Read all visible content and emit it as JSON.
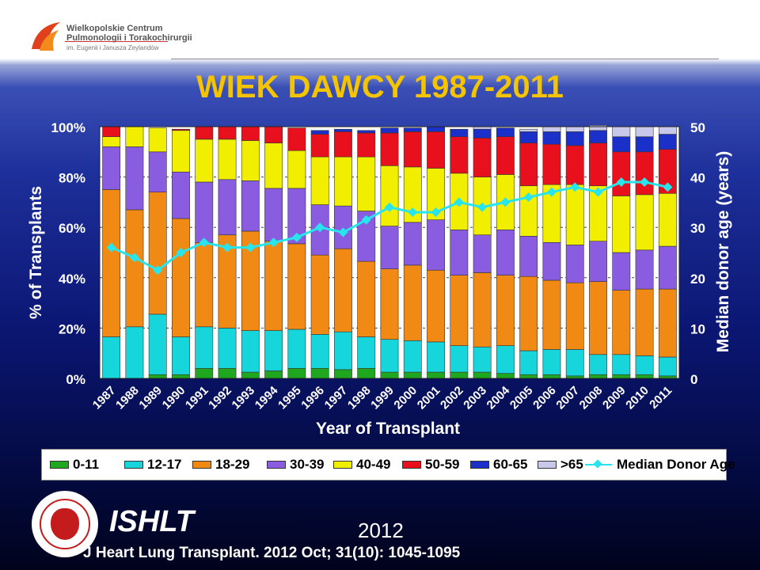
{
  "header": {
    "org_line1": "Wielkopolskie Centrum",
    "org_line2": "Pulmonologii i Torakochirurgii",
    "org_line3": "im. Eugenii i Janusza Zeylandów"
  },
  "chart_data": {
    "type": "bar",
    "stacked": true,
    "title": "WIEK DAWCY 1987-2011",
    "xlabel": "Year of Transplant",
    "ylabel": "% of Transplants",
    "y2label": "Median donor age (years)",
    "ylim": [
      0,
      100
    ],
    "y2lim": [
      0,
      50
    ],
    "yticks": [
      "0%",
      "20%",
      "40%",
      "60%",
      "80%",
      "100%"
    ],
    "y2ticks": [
      "0",
      "10",
      "20",
      "30",
      "40",
      "50"
    ],
    "grid": true,
    "legend_position": "bottom",
    "categories": [
      "1987",
      "1988",
      "1989",
      "1990",
      "1991",
      "1992",
      "1993",
      "1994",
      "1995",
      "1996",
      "1997",
      "1998",
      "1999",
      "2000",
      "2001",
      "2002",
      "2003",
      "2004",
      "2005",
      "2006",
      "2007",
      "2008",
      "2009",
      "2010",
      "2011"
    ],
    "series": [
      {
        "name": "0-11",
        "color": "#1fa81f",
        "values": [
          0,
          0,
          1.5,
          1.5,
          4,
          4,
          2.5,
          3,
          4,
          4,
          3.5,
          4,
          2.5,
          2.5,
          2.5,
          2.5,
          2.5,
          2,
          1.5,
          1.5,
          1,
          1.5,
          1.5,
          1.5,
          1
        ]
      },
      {
        "name": "12-17",
        "color": "#16d6dc",
        "values": [
          16.5,
          20.5,
          24,
          15,
          16.5,
          16,
          16.5,
          16,
          15.5,
          13.5,
          15,
          12.5,
          13,
          12.5,
          12,
          10.5,
          10,
          11,
          9.5,
          10,
          10.5,
          8,
          8,
          7.5,
          7.5
        ]
      },
      {
        "name": "18-29",
        "color": "#f08a14",
        "values": [
          58.5,
          46.5,
          48.5,
          47,
          33.5,
          37,
          39.5,
          35.5,
          34,
          31.5,
          33,
          30,
          28,
          30,
          28.5,
          28,
          29.5,
          28,
          29.5,
          27.5,
          26.5,
          29,
          25.5,
          26.5,
          27
        ]
      },
      {
        "name": "30-39",
        "color": "#8a5ce0",
        "values": [
          17,
          25,
          16,
          18.5,
          24,
          22,
          20,
          21,
          22,
          20,
          17,
          20,
          17,
          17,
          20,
          18,
          15,
          18,
          16,
          15,
          15,
          16,
          15,
          15.5,
          17
        ]
      },
      {
        "name": "40-49",
        "color": "#f2ee00",
        "values": [
          4,
          8,
          9.5,
          16.5,
          17,
          16,
          16,
          18,
          15,
          19,
          19.5,
          21.5,
          24,
          22,
          20.5,
          22.5,
          23,
          22,
          20,
          23,
          24,
          22,
          22.5,
          22,
          21
        ]
      },
      {
        "name": "50-59",
        "color": "#e8101c",
        "values": [
          4,
          0,
          0,
          0.5,
          5,
          5,
          5.5,
          6.5,
          9,
          9,
          10,
          9.5,
          13,
          14,
          14.5,
          14.5,
          15.5,
          15,
          17,
          16,
          15.5,
          17,
          17.5,
          17,
          17.5
        ]
      },
      {
        "name": "60-65",
        "color": "#1a30c8",
        "values": [
          0,
          0,
          0,
          0,
          0,
          0,
          0,
          0,
          0,
          1.5,
          1,
          1,
          2,
          1.5,
          2,
          3,
          3.5,
          3.5,
          4.5,
          5,
          5.5,
          5,
          6,
          6,
          6
        ]
      },
      {
        "name": ">65",
        "color": "#c8c8ea",
        "values": [
          0,
          0,
          0,
          0,
          0,
          0,
          0,
          0,
          0,
          0,
          0,
          0,
          0,
          0,
          0,
          0,
          1,
          0,
          1,
          2,
          2,
          2,
          4,
          4,
          3
        ]
      }
    ],
    "line_series": {
      "name": "Median Donor Age",
      "color": "#28e4ec",
      "axis": "right",
      "values": [
        26,
        24,
        21.5,
        25,
        27,
        26,
        26,
        27,
        28,
        30,
        29,
        31.5,
        34,
        33,
        33,
        35,
        34,
        35,
        36,
        37,
        38,
        37,
        39,
        39,
        38
      ]
    }
  },
  "footer": {
    "society": "ISHLT",
    "year": "2012",
    "citation": "J Heart Lung Transplant. 2012 Oct; 31(10): 1045-1095"
  }
}
